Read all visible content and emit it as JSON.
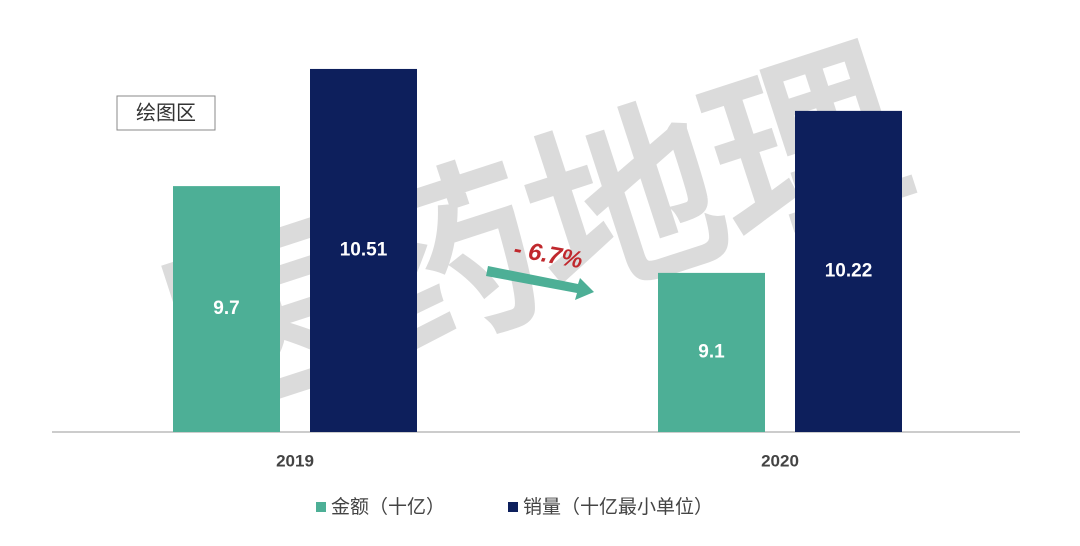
{
  "chart_data": {
    "type": "bar",
    "categories": [
      "2019",
      "2020"
    ],
    "series": [
      {
        "name": "金额（十亿）",
        "color": "#4daf96",
        "values": [
          9.7,
          9.1
        ]
      },
      {
        "name": "销量（十亿最小单位）",
        "color": "#0d1f5c",
        "values": [
          10.51,
          10.22
        ]
      }
    ],
    "ylim": [
      8,
      10.8
    ],
    "annotation": "- 6.7%",
    "annotation_color": "#c0282d",
    "plot_area_label": "绘图区",
    "watermark": "医药地理",
    "legend": "bottom"
  }
}
